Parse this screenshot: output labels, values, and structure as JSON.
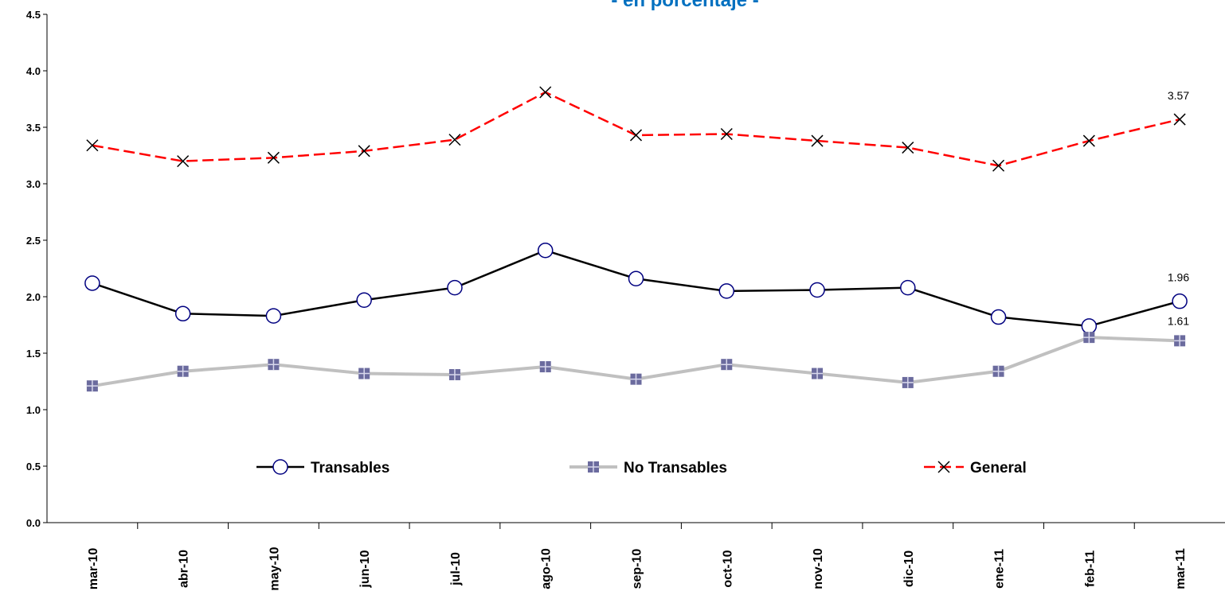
{
  "chart_data": {
    "type": "line",
    "title": "- en porcentaje -",
    "categories": [
      "mar-10",
      "abr-10",
      "may-10",
      "jun-10",
      "jul-10",
      "ago-10",
      "sep-10",
      "oct-10",
      "nov-10",
      "dic-10",
      "ene-11",
      "feb-11",
      "mar-11"
    ],
    "series": [
      {
        "name": "Transables",
        "color": "#000000",
        "marker": "circle",
        "values": [
          2.12,
          1.85,
          1.83,
          1.97,
          2.08,
          2.41,
          2.16,
          2.05,
          2.06,
          2.08,
          1.82,
          1.74,
          1.96
        ]
      },
      {
        "name": "No Transables",
        "color": "#c0c0c0",
        "marker": "square",
        "values": [
          1.21,
          1.34,
          1.4,
          1.32,
          1.31,
          1.38,
          1.27,
          1.4,
          1.32,
          1.24,
          1.34,
          1.64,
          1.61
        ]
      },
      {
        "name": "General",
        "color": "#ff0000",
        "marker": "x",
        "dashed": true,
        "values": [
          3.34,
          3.2,
          3.23,
          3.29,
          3.39,
          3.81,
          3.43,
          3.44,
          3.38,
          3.32,
          3.16,
          3.38,
          3.57
        ]
      }
    ],
    "data_labels": "last",
    "ylim": [
      0,
      4.5
    ],
    "yticks": [
      {
        "value": 0,
        "label": "0.0"
      },
      0.5,
      {
        "value": 1,
        "label": "1.0"
      },
      1.5,
      {
        "value": 2,
        "label": "2.0"
      },
      2.5,
      {
        "value": 3,
        "label": "3.0"
      },
      3.5,
      {
        "value": 4,
        "label": "4.0"
      },
      4.5
    ],
    "grid": false,
    "legend": "bottom"
  }
}
